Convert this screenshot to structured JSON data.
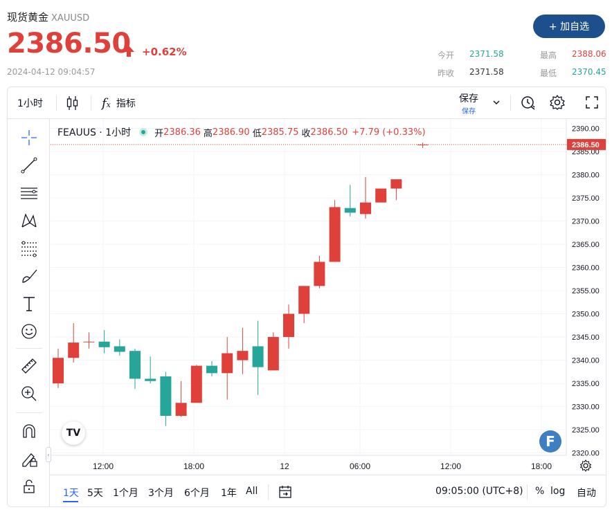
{
  "header": {
    "name": "现货黄金",
    "symbol": "XAUUSD",
    "price": "2386.50",
    "change_pct": "+0.62%",
    "timestamp": "2024-04-12 09:04:57",
    "add_button": "+ 加自选",
    "stats": {
      "open_label": "今开",
      "open_value": "2371.58",
      "high_label": "最高",
      "high_value": "2388.06",
      "prev_close_label": "昨收",
      "prev_close_value": "2371.58",
      "low_label": "最低",
      "low_value": "2370.45"
    },
    "colors": {
      "up": "#e0403a",
      "down": "#26a69a",
      "accent": "#1e4f8d"
    }
  },
  "toolbar": {
    "interval": "1小时",
    "candle_icon": "candlestick-icon",
    "indicator_label": "指标",
    "save_label": "保存",
    "save_sub": "保存",
    "icons": [
      "alert-icon",
      "gear-icon",
      "fullscreen-icon"
    ]
  },
  "left_tools": [
    "crosshair-icon",
    "trendline-icon",
    "horizontal-lines-icon",
    "pattern-icon",
    "fib-icon",
    "brush-icon",
    "text-icon",
    "emoji-icon",
    "ruler-icon",
    "zoom-in-icon",
    "magnet-icon",
    "lock-pencil-icon",
    "lock-icon"
  ],
  "legend": {
    "symbol": "FEAUUS · 1小时",
    "open_label": "开",
    "open": "2386.36",
    "high_label": "高",
    "high": "2386.90",
    "low_label": "低",
    "low": "2385.75",
    "close_label": "收",
    "close": "2386.50",
    "change": "+7.79 (+0.33%)"
  },
  "chart_data": {
    "type": "candlestick",
    "interval": "1h",
    "x_ticks": [
      "12:00",
      "18:00",
      "12",
      "06:00",
      "12:00",
      "18:00"
    ],
    "y_ticks": [
      2390,
      2385,
      2380,
      2375,
      2370,
      2365,
      2360,
      2355,
      2350,
      2345,
      2340,
      2335,
      2330,
      2325,
      2320
    ],
    "y_tick_labels": [
      "2390.00",
      "2385.00",
      "2380.00",
      "2375.00",
      "2370.00",
      "2365.00",
      "2360.00",
      "2355.00",
      "2350.00",
      "2345.00",
      "2340.00",
      "2335.00",
      "2330.00",
      "2325.00",
      "2320.00"
    ],
    "ylim": [
      2319.5,
      2392.0
    ],
    "last_price": 2386.5,
    "last_price_label": "2386.50",
    "up_color": "#e0403a",
    "down_color": "#26a69a",
    "candles": [
      {
        "o": 2335.0,
        "h": 2342.5,
        "l": 2334.0,
        "c": 2340.5
      },
      {
        "o": 2340.5,
        "h": 2348.0,
        "l": 2339.5,
        "c": 2343.8
      },
      {
        "o": 2344.0,
        "h": 2346.0,
        "l": 2342.5,
        "c": 2344.0
      },
      {
        "o": 2344.0,
        "h": 2346.5,
        "l": 2341.5,
        "c": 2342.8
      },
      {
        "o": 2343.0,
        "h": 2344.5,
        "l": 2341.0,
        "c": 2341.8
      },
      {
        "o": 2342.0,
        "h": 2342.5,
        "l": 2333.8,
        "c": 2336.0
      },
      {
        "o": 2336.0,
        "h": 2340.8,
        "l": 2335.0,
        "c": 2335.5
      },
      {
        "o": 2336.5,
        "h": 2337.5,
        "l": 2325.8,
        "c": 2328.0
      },
      {
        "o": 2328.0,
        "h": 2335.5,
        "l": 2327.8,
        "c": 2330.8
      },
      {
        "o": 2330.8,
        "h": 2339.0,
        "l": 2330.8,
        "c": 2338.8
      },
      {
        "o": 2338.8,
        "h": 2339.8,
        "l": 2336.5,
        "c": 2337.2
      },
      {
        "o": 2337.2,
        "h": 2345.0,
        "l": 2331.5,
        "c": 2341.5
      },
      {
        "o": 2340.0,
        "h": 2347.0,
        "l": 2337.0,
        "c": 2342.0
      },
      {
        "o": 2343.0,
        "h": 2348.5,
        "l": 2332.5,
        "c": 2338.5
      },
      {
        "o": 2337.8,
        "h": 2346.0,
        "l": 2337.8,
        "c": 2345.0
      },
      {
        "o": 2345.0,
        "h": 2352.0,
        "l": 2342.5,
        "c": 2350.0
      },
      {
        "o": 2350.0,
        "h": 2356.0,
        "l": 2348.0,
        "c": 2356.0
      },
      {
        "o": 2356.0,
        "h": 2362.5,
        "l": 2355.5,
        "c": 2361.2
      },
      {
        "o": 2361.2,
        "h": 2374.5,
        "l": 2361.2,
        "c": 2373.0
      },
      {
        "o": 2372.8,
        "h": 2377.8,
        "l": 2371.0,
        "c": 2371.8
      },
      {
        "o": 2371.5,
        "h": 2379.5,
        "l": 2370.5,
        "c": 2374.0
      },
      {
        "o": 2374.0,
        "h": 2377.0,
        "l": 2374.0,
        "c": 2377.0
      },
      {
        "o": 2377.0,
        "h": 2379.0,
        "l": 2374.5,
        "c": 2379.0
      },
      {
        "o": 2386.36,
        "h": 2386.9,
        "l": 2385.75,
        "c": 2386.5
      }
    ]
  },
  "bottom": {
    "ranges": [
      "1天",
      "5天",
      "1个月",
      "3个月",
      "6个月",
      "1年",
      "All"
    ],
    "active_range": "1天",
    "time": "09:05:00 (UTC+8)",
    "pct_label": "%",
    "log_label": "log",
    "auto_label": "自动"
  },
  "logo": "TV",
  "badge": "F"
}
